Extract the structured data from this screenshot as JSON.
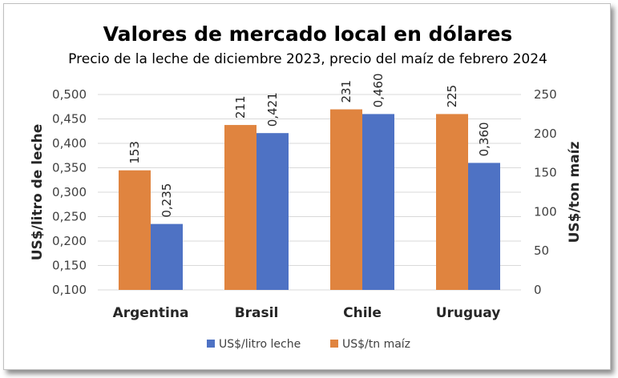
{
  "chart_data": {
    "type": "bar",
    "title": "Valores de mercado local en dólares",
    "subtitle": "Precio de la leche de diciembre 2023, precio del maíz de febrero 2024",
    "categories": [
      "Argentina",
      "Brasil",
      "Chile",
      "Uruguay"
    ],
    "ylabel_left": "US$/litro de leche",
    "ylabel_right": "US$/ton maíz",
    "ylim_left": [
      0.1,
      0.5
    ],
    "ylim_right": [
      0,
      250
    ],
    "yticks_left": [
      "0,100",
      "0,150",
      "0,200",
      "0,250",
      "0,300",
      "0,350",
      "0,400",
      "0,450",
      "0,500"
    ],
    "yticks_right": [
      "0",
      "50",
      "100",
      "150",
      "200",
      "250"
    ],
    "grid": true,
    "legend_position": "bottom",
    "series": [
      {
        "name": "US$/tn maíz",
        "axis": "right",
        "color": "#E0843F",
        "values": [
          153,
          211,
          231,
          225
        ],
        "labels": [
          "153",
          "211",
          "231",
          "225"
        ]
      },
      {
        "name": "US$/litro leche",
        "axis": "left",
        "color": "#4E72C4",
        "values": [
          0.235,
          0.421,
          0.46,
          0.36
        ],
        "labels": [
          "0,235",
          "0,421",
          "0,460",
          "0,360"
        ]
      }
    ],
    "legend_order": [
      "US$/litro leche",
      "US$/tn maíz"
    ]
  }
}
